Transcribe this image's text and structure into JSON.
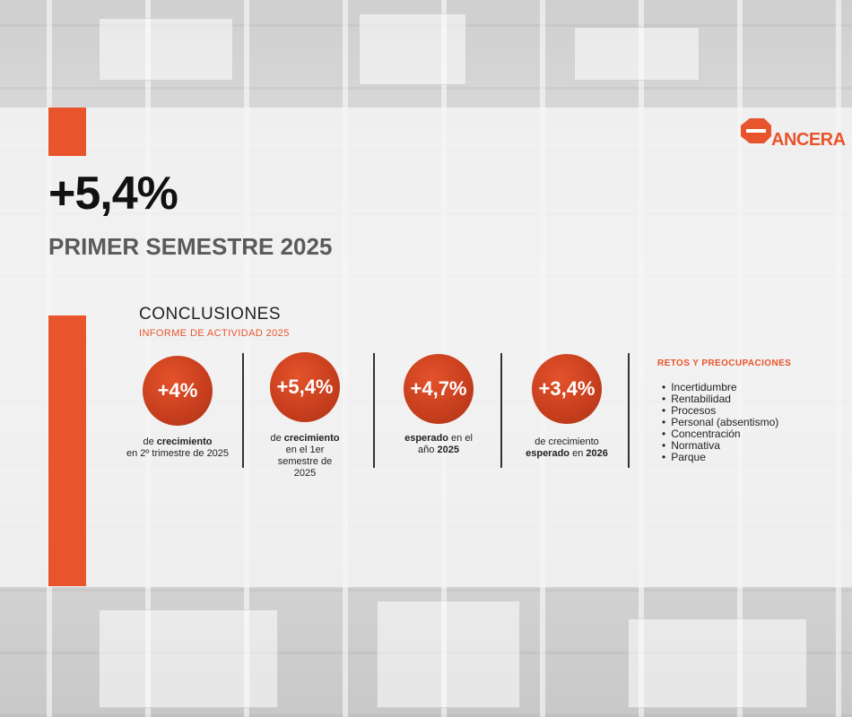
{
  "header": {
    "big_stat": "+5,4%",
    "subtitle": "PRIMER SEMESTRE 2025",
    "logo_text": "ANCERA"
  },
  "colors": {
    "accent": "#e8542b",
    "circle": "#c63e1d",
    "text_dark": "#111111",
    "subtitle_gray": "#5a5a5a"
  },
  "conclusions": {
    "title": "CONCLUSIONES",
    "subtitle": "INFORME DE ACTIVIDAD 2025",
    "stats": [
      {
        "value": "+4%",
        "desc_parts": [
          "de ",
          "crecimiento",
          " en 2º trimestre de 2025"
        ]
      },
      {
        "value": "+5,4%",
        "desc_parts": [
          "de ",
          "crecimiento",
          " en el 1er semestre de 2025"
        ]
      },
      {
        "value": "+4,7%",
        "desc_parts": [
          "",
          "esperado",
          " en el año ",
          "2025"
        ]
      },
      {
        "value": "+3,4%",
        "desc_parts": [
          "de crecimiento ",
          "esperado",
          " en ",
          "2026"
        ]
      }
    ]
  },
  "retos": {
    "title": "RETOS Y PREOCUPACIONES",
    "items": [
      "Incertidumbre",
      "Rentabilidad",
      "Procesos",
      "Personal (absentismo)",
      "Concentración",
      "Normativa",
      "Parque"
    ]
  }
}
